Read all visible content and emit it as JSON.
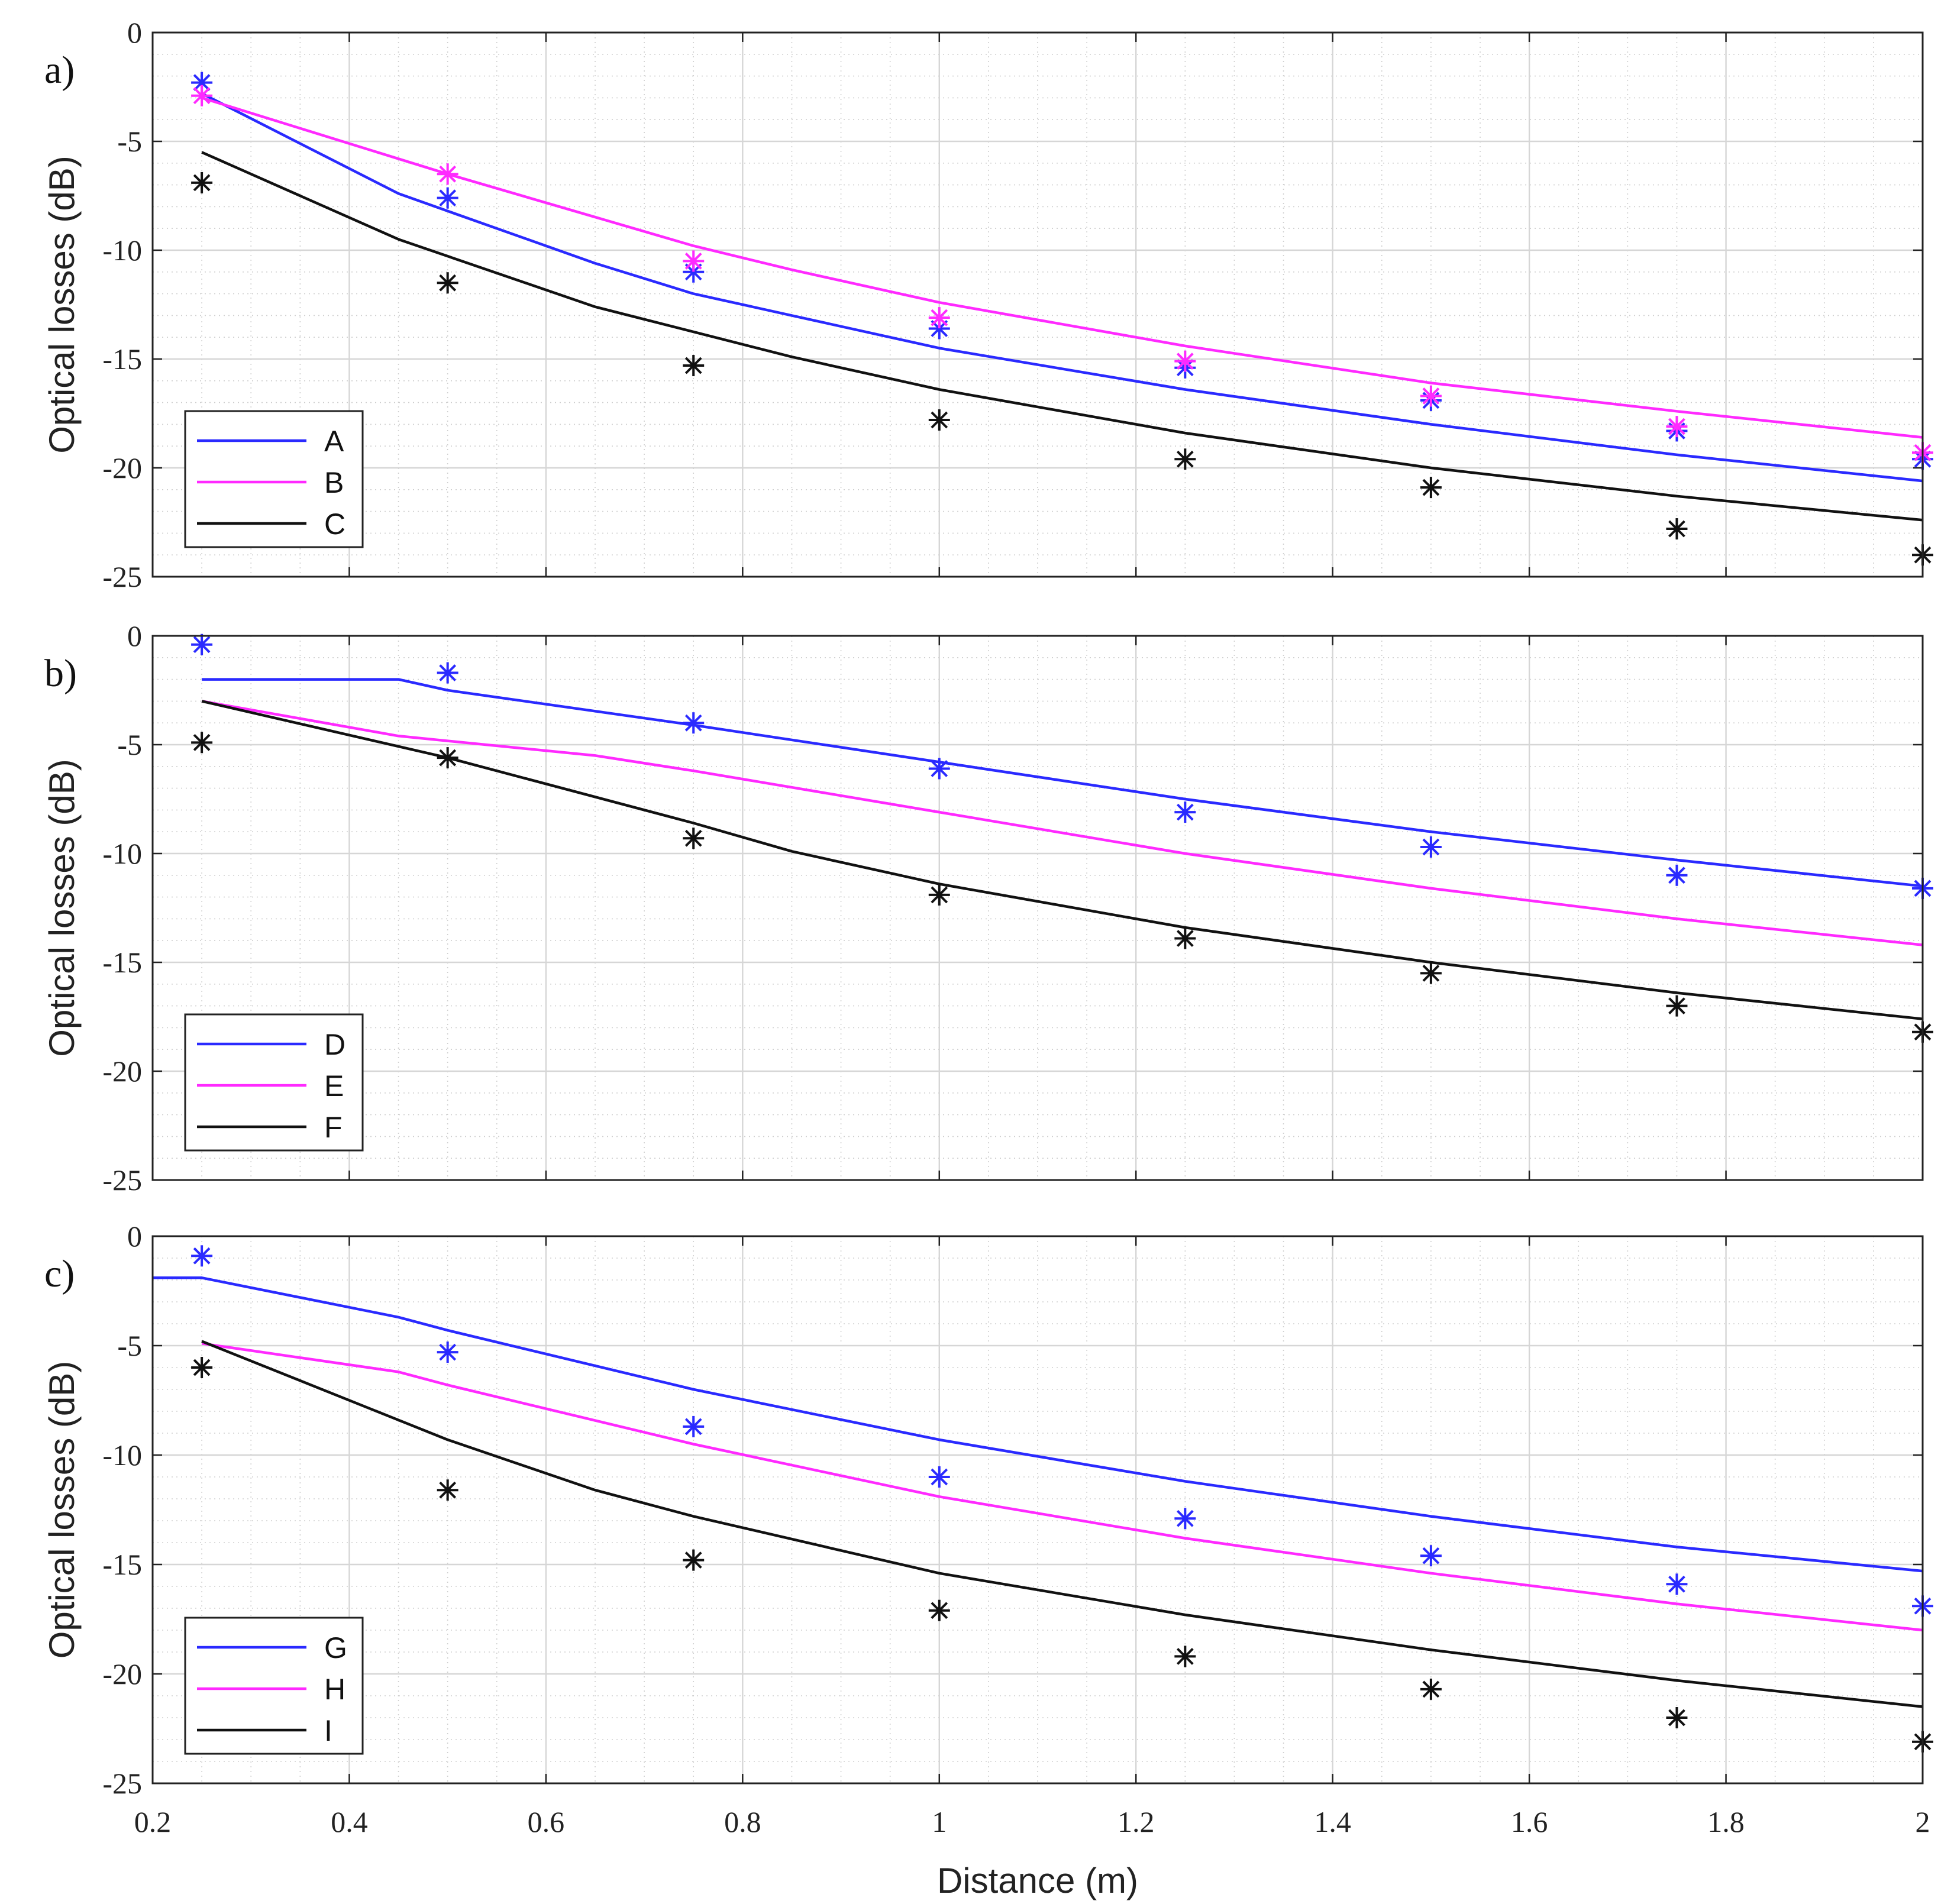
{
  "chart_data": [
    {
      "type": "line",
      "panel_label": "a)",
      "title": "",
      "xlabel": "",
      "ylabel": "Optical losses (dB)",
      "xlim": [
        0.2,
        2
      ],
      "ylim": [
        -25,
        0
      ],
      "grid": true,
      "legend_position": "bottom-left",
      "x_ticks": [
        "0.2",
        "0.4",
        "0.6",
        "0.8",
        "1",
        "1.2",
        "1.4",
        "1.6",
        "1.8",
        "2"
      ],
      "x_ticks_visible": false,
      "y_ticks": [
        "0",
        "-5",
        "-10",
        "-15",
        "-20",
        "-25"
      ],
      "series": [
        {
          "name": "A",
          "color": "#2a2aff",
          "line": {
            "x": [
              0.25,
              0.45,
              0.5,
              0.65,
              0.75,
              0.85,
              1.0,
              1.25,
              1.5,
              1.75,
              2.0
            ],
            "y": [
              -2.8,
              -7.4,
              -8.2,
              -10.6,
              -12.0,
              -13.0,
              -14.5,
              -16.4,
              -18.0,
              -19.4,
              -20.6
            ]
          },
          "markers": {
            "x": [
              0.25,
              0.5,
              0.75,
              1.0,
              1.25,
              1.5,
              1.75,
              2.0
            ],
            "y": [
              -2.3,
              -7.6,
              -11.0,
              -13.6,
              -15.4,
              -16.9,
              -18.3,
              -19.6
            ]
          }
        },
        {
          "name": "B",
          "color": "#ff2aff",
          "line": {
            "x": [
              0.25,
              0.5,
              0.75,
              0.85,
              1.0,
              1.25,
              1.5,
              1.75,
              2.0
            ],
            "y": [
              -3.0,
              -6.5,
              -9.8,
              -10.9,
              -12.4,
              -14.4,
              -16.1,
              -17.4,
              -18.6
            ]
          },
          "markers": {
            "x": [
              0.25,
              0.5,
              0.75,
              1.0,
              1.25,
              1.5,
              1.75,
              2.0
            ],
            "y": [
              -2.9,
              -6.5,
              -10.5,
              -13.1,
              -15.1,
              -16.7,
              -18.1,
              -19.3
            ]
          }
        },
        {
          "name": "C",
          "color": "#111111",
          "line": {
            "x": [
              0.25,
              0.45,
              0.65,
              0.85,
              1.0,
              1.25,
              1.5,
              1.75,
              2.0
            ],
            "y": [
              -5.5,
              -9.5,
              -12.6,
              -14.9,
              -16.4,
              -18.4,
              -20.0,
              -21.3,
              -22.4
            ]
          },
          "markers": {
            "x": [
              0.25,
              0.5,
              0.75,
              1.0,
              1.25,
              1.5,
              1.75,
              2.0
            ],
            "y": [
              -6.9,
              -11.5,
              -15.3,
              -17.8,
              -19.6,
              -20.9,
              -22.8,
              -24.0
            ]
          }
        }
      ]
    },
    {
      "type": "line",
      "panel_label": "b)",
      "title": "",
      "xlabel": "",
      "ylabel": "Optical losses (dB)",
      "xlim": [
        0.2,
        2
      ],
      "ylim": [
        -25,
        0
      ],
      "grid": true,
      "legend_position": "bottom-left",
      "x_ticks": [
        "0.2",
        "0.4",
        "0.6",
        "0.8",
        "1",
        "1.2",
        "1.4",
        "1.6",
        "1.8",
        "2"
      ],
      "x_ticks_visible": false,
      "y_ticks": [
        "0",
        "-5",
        "-10",
        "-15",
        "-20",
        "-25"
      ],
      "series": [
        {
          "name": "D",
          "color": "#2a2aff",
          "line": {
            "x": [
              0.25,
              0.45,
              0.5,
              0.75,
              1.0,
              1.25,
              1.5,
              1.75,
              2.0
            ],
            "y": [
              -2.0,
              -2.0,
              -2.5,
              -4.1,
              -5.8,
              -7.5,
              -9.0,
              -10.3,
              -11.5
            ]
          },
          "markers": {
            "x": [
              0.25,
              0.5,
              0.75,
              1.0,
              1.25,
              1.5,
              1.75,
              2.0
            ],
            "y": [
              -0.4,
              -1.7,
              -4.0,
              -6.1,
              -8.1,
              -9.7,
              -11.0,
              -11.6
            ]
          }
        },
        {
          "name": "E",
          "color": "#ff2aff",
          "line": {
            "x": [
              0.25,
              0.45,
              0.65,
              0.75,
              1.0,
              1.25,
              1.5,
              1.75,
              2.0
            ],
            "y": [
              -3.0,
              -4.6,
              -5.5,
              -6.2,
              -8.1,
              -10.0,
              -11.6,
              -13.0,
              -14.2
            ]
          },
          "markers": {
            "x": [],
            "y": []
          }
        },
        {
          "name": "F",
          "color": "#111111",
          "line": {
            "x": [
              0.25,
              0.5,
              0.75,
              0.85,
              1.0,
              1.25,
              1.5,
              1.75,
              2.0
            ],
            "y": [
              -3.0,
              -5.6,
              -8.6,
              -9.9,
              -11.4,
              -13.4,
              -15.0,
              -16.4,
              -17.6
            ]
          },
          "markers": {
            "x": [
              0.25,
              0.5,
              0.75,
              1.0,
              1.25,
              1.5,
              1.75,
              2.0
            ],
            "y": [
              -4.9,
              -5.6,
              -9.3,
              -11.9,
              -13.9,
              -15.5,
              -17.0,
              -18.2
            ]
          }
        }
      ]
    },
    {
      "type": "line",
      "panel_label": "c)",
      "title": "",
      "xlabel": "Distance (m)",
      "ylabel": "Optical losses (dB)",
      "xlim": [
        0.2,
        2
      ],
      "ylim": [
        -25,
        0
      ],
      "grid": true,
      "legend_position": "bottom-left",
      "x_ticks": [
        "0.2",
        "0.4",
        "0.6",
        "0.8",
        "1",
        "1.2",
        "1.4",
        "1.6",
        "1.8",
        "2"
      ],
      "x_ticks_visible": true,
      "y_ticks": [
        "0",
        "-5",
        "-10",
        "-15",
        "-20",
        "-25"
      ],
      "series": [
        {
          "name": "G",
          "color": "#2a2aff",
          "line": {
            "x": [
              0.2,
              0.25,
              0.45,
              0.5,
              0.75,
              1.0,
              1.25,
              1.5,
              1.75,
              2.0
            ],
            "y": [
              -1.9,
              -1.9,
              -3.7,
              -4.3,
              -7.0,
              -9.3,
              -11.2,
              -12.8,
              -14.2,
              -15.3
            ]
          },
          "markers": {
            "x": [
              0.25,
              0.5,
              0.75,
              1.0,
              1.25,
              1.5,
              1.75,
              2.0
            ],
            "y": [
              -0.9,
              -5.3,
              -8.7,
              -11.0,
              -12.9,
              -14.6,
              -15.9,
              -16.9
            ]
          }
        },
        {
          "name": "H",
          "color": "#ff2aff",
          "line": {
            "x": [
              0.25,
              0.45,
              0.5,
              0.75,
              1.0,
              1.25,
              1.5,
              1.75,
              2.0
            ],
            "y": [
              -4.9,
              -6.2,
              -6.8,
              -9.5,
              -11.9,
              -13.8,
              -15.4,
              -16.8,
              -18.0
            ]
          },
          "markers": {
            "x": [],
            "y": []
          }
        },
        {
          "name": "I",
          "color": "#111111",
          "line": {
            "x": [
              0.25,
              0.45,
              0.5,
              0.65,
              0.75,
              1.0,
              1.25,
              1.5,
              1.75,
              2.0
            ],
            "y": [
              -4.8,
              -8.4,
              -9.3,
              -11.6,
              -12.8,
              -15.4,
              -17.3,
              -18.9,
              -20.3,
              -21.5
            ]
          },
          "markers": {
            "x": [
              0.25,
              0.5,
              0.75,
              1.0,
              1.25,
              1.5,
              1.75,
              2.0
            ],
            "y": [
              -6.0,
              -11.6,
              -14.8,
              -17.1,
              -19.2,
              -20.7,
              -22.0,
              -23.1
            ]
          }
        }
      ]
    }
  ]
}
